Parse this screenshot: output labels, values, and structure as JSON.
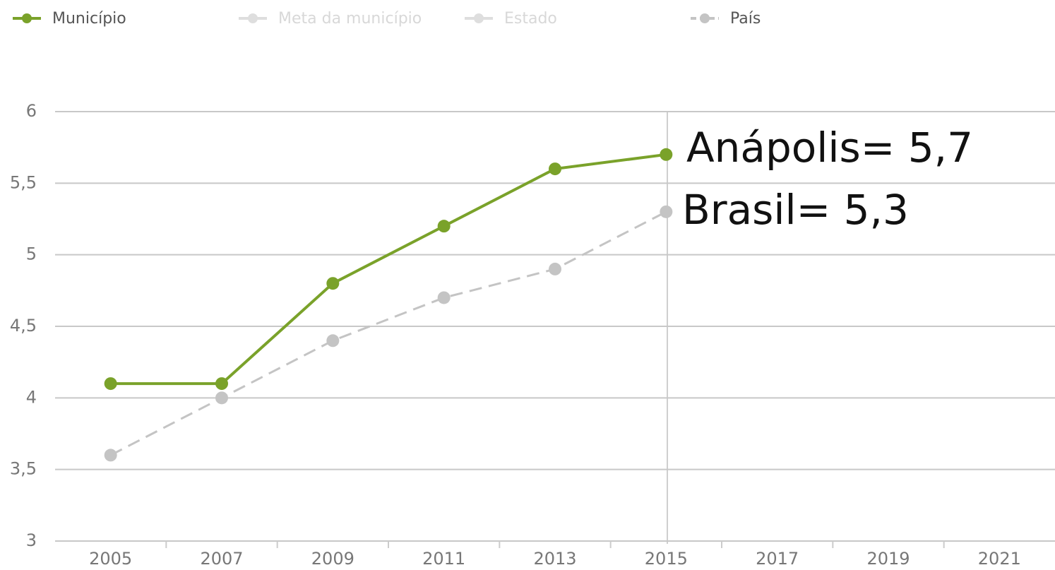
{
  "chart_data": {
    "type": "line",
    "categories": [
      "2005",
      "2007",
      "2009",
      "2011",
      "2013",
      "2015",
      "2017",
      "2019",
      "2021"
    ],
    "series": [
      {
        "name": "Município",
        "color": "#7aa22a",
        "values": [
          4.1,
          4.1,
          4.8,
          5.2,
          5.6,
          5.7,
          null,
          null,
          null
        ]
      },
      {
        "name": "Meta da município",
        "color": "#d8d8d8",
        "visible": false,
        "values": [
          null,
          null,
          null,
          null,
          null,
          null,
          null,
          null,
          null
        ]
      },
      {
        "name": "Estado",
        "color": "#d8d8d8",
        "visible": false,
        "values": [
          null,
          null,
          null,
          null,
          null,
          null,
          null,
          null,
          null
        ]
      },
      {
        "name": "País",
        "color": "#c4c4c4",
        "dashed": true,
        "values": [
          3.6,
          4.0,
          4.4,
          4.7,
          4.9,
          5.3,
          null,
          null,
          null
        ]
      }
    ],
    "ylim": [
      3,
      6
    ],
    "yticks": [
      3,
      {
        "value": 3.5,
        "label": "3,5"
      },
      4,
      {
        "value": 4.5,
        "label": "4,5"
      },
      5,
      {
        "value": 5.5,
        "label": "5,5"
      },
      6
    ],
    "grid": true,
    "legend": "top-left",
    "annotations": [
      "Anápolis= 5,7",
      "Brasil= 5,3"
    ]
  }
}
